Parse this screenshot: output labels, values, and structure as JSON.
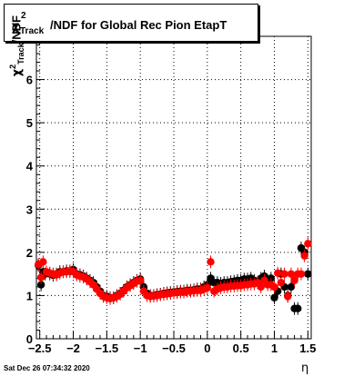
{
  "chart_data": {
    "type": "scatter",
    "title": "/NDF for Global Rec Pion EtapT",
    "title_symbol": "χ",
    "title_superscript": "2",
    "title_subscript": "Track",
    "ylabel_symbol": "χ",
    "ylabel_superscript": "2",
    "ylabel_subscript": "Track",
    "ylabel_rest": "/NDF",
    "xlabel": "η",
    "xlim": [
      -2.55,
      1.55
    ],
    "ylim": [
      0,
      7
    ],
    "grid": true,
    "legend": "none",
    "xticks": [
      -2.5,
      -2,
      -1.5,
      -1,
      -0.5,
      0,
      0.5,
      1,
      1.5
    ],
    "xtick_labels": [
      "−2.5",
      "−2",
      "−1.5",
      "−1",
      "−0.5",
      "0",
      "0.5",
      "1",
      "1.5"
    ],
    "yticks": [
      0,
      1,
      2,
      3,
      4,
      5,
      6
    ],
    "ytick_labels": [
      "0",
      "1",
      "2",
      "3",
      "4",
      "5",
      "6"
    ],
    "series": [
      {
        "color": "#000000",
        "points": [
          [
            -2.52,
            1.7
          ],
          [
            -2.48,
            1.25
          ],
          [
            -2.45,
            1.55
          ],
          [
            -2.42,
            1.5
          ],
          [
            -2.35,
            1.5
          ],
          [
            -2.3,
            1.47
          ],
          [
            -2.25,
            1.5
          ],
          [
            -2.2,
            1.55
          ],
          [
            -2.15,
            1.55
          ],
          [
            -2.1,
            1.57
          ],
          [
            -2.05,
            1.56
          ],
          [
            -2.0,
            1.6
          ],
          [
            -1.95,
            1.5
          ],
          [
            -1.9,
            1.48
          ],
          [
            -1.85,
            1.45
          ],
          [
            -1.8,
            1.4
          ],
          [
            -1.75,
            1.35
          ],
          [
            -1.7,
            1.3
          ],
          [
            -1.65,
            1.2
          ],
          [
            -1.6,
            1.1
          ],
          [
            -1.55,
            1.0
          ],
          [
            -1.5,
            0.98
          ],
          [
            -1.45,
            0.95
          ],
          [
            -1.4,
            0.95
          ],
          [
            -1.35,
            1.0
          ],
          [
            -1.3,
            1.05
          ],
          [
            -1.25,
            1.12
          ],
          [
            -1.2,
            1.2
          ],
          [
            -1.15,
            1.25
          ],
          [
            -1.1,
            1.3
          ],
          [
            -1.05,
            1.35
          ],
          [
            -1.0,
            1.38
          ],
          [
            -0.95,
            1.2
          ],
          [
            -0.9,
            1.05
          ],
          [
            -0.85,
            1.0
          ],
          [
            -0.8,
            1.0
          ],
          [
            -0.75,
            1.02
          ],
          [
            -0.7,
            1.03
          ],
          [
            -0.65,
            1.05
          ],
          [
            -0.6,
            1.06
          ],
          [
            -0.55,
            1.07
          ],
          [
            -0.5,
            1.08
          ],
          [
            -0.45,
            1.09
          ],
          [
            -0.4,
            1.1
          ],
          [
            -0.35,
            1.1
          ],
          [
            -0.3,
            1.12
          ],
          [
            -0.25,
            1.12
          ],
          [
            -0.2,
            1.13
          ],
          [
            -0.15,
            1.15
          ],
          [
            -0.1,
            1.15
          ],
          [
            -0.05,
            1.2
          ],
          [
            0.0,
            1.25
          ],
          [
            0.05,
            1.4
          ],
          [
            0.1,
            1.3
          ],
          [
            0.15,
            1.3
          ],
          [
            0.2,
            1.28
          ],
          [
            0.25,
            1.3
          ],
          [
            0.3,
            1.3
          ],
          [
            0.35,
            1.32
          ],
          [
            0.4,
            1.33
          ],
          [
            0.45,
            1.35
          ],
          [
            0.5,
            1.35
          ],
          [
            0.55,
            1.38
          ],
          [
            0.6,
            1.38
          ],
          [
            0.65,
            1.4
          ],
          [
            0.7,
            1.35
          ],
          [
            0.75,
            1.3
          ],
          [
            0.8,
            1.4
          ],
          [
            0.85,
            1.45
          ],
          [
            0.9,
            1.35
          ],
          [
            0.95,
            1.4
          ],
          [
            1.0,
            0.95
          ],
          [
            1.05,
            1.1
          ],
          [
            1.1,
            1.5
          ],
          [
            1.15,
            1.2
          ],
          [
            1.2,
            1.0
          ],
          [
            1.25,
            1.2
          ],
          [
            1.3,
            0.7
          ],
          [
            1.35,
            0.7
          ],
          [
            1.4,
            2.1
          ],
          [
            1.45,
            2.0
          ],
          [
            1.5,
            1.5
          ]
        ]
      },
      {
        "color": "#ff0000",
        "points": [
          [
            -2.52,
            1.72
          ],
          [
            -2.48,
            1.42
          ],
          [
            -2.45,
            1.78
          ],
          [
            -2.4,
            1.55
          ],
          [
            -2.35,
            1.52
          ],
          [
            -2.3,
            1.5
          ],
          [
            -2.25,
            1.48
          ],
          [
            -2.2,
            1.52
          ],
          [
            -2.15,
            1.55
          ],
          [
            -2.1,
            1.55
          ],
          [
            -2.05,
            1.57
          ],
          [
            -2.0,
            1.55
          ],
          [
            -1.95,
            1.48
          ],
          [
            -1.9,
            1.45
          ],
          [
            -1.85,
            1.43
          ],
          [
            -1.8,
            1.38
          ],
          [
            -1.75,
            1.32
          ],
          [
            -1.7,
            1.25
          ],
          [
            -1.65,
            1.15
          ],
          [
            -1.6,
            1.05
          ],
          [
            -1.55,
            0.98
          ],
          [
            -1.5,
            0.95
          ],
          [
            -1.45,
            0.93
          ],
          [
            -1.4,
            0.95
          ],
          [
            -1.35,
            0.98
          ],
          [
            -1.3,
            1.03
          ],
          [
            -1.25,
            1.1
          ],
          [
            -1.2,
            1.18
          ],
          [
            -1.15,
            1.23
          ],
          [
            -1.1,
            1.28
          ],
          [
            -1.05,
            1.33
          ],
          [
            -1.0,
            1.35
          ],
          [
            -0.95,
            1.1
          ],
          [
            -0.9,
            1.0
          ],
          [
            -0.85,
            0.98
          ],
          [
            -0.8,
            0.99
          ],
          [
            -0.75,
            1.0
          ],
          [
            -0.7,
            1.02
          ],
          [
            -0.65,
            1.03
          ],
          [
            -0.6,
            1.04
          ],
          [
            -0.55,
            1.05
          ],
          [
            -0.5,
            1.06
          ],
          [
            -0.45,
            1.07
          ],
          [
            -0.4,
            1.08
          ],
          [
            -0.35,
            1.08
          ],
          [
            -0.3,
            1.1
          ],
          [
            -0.25,
            1.1
          ],
          [
            -0.2,
            1.11
          ],
          [
            -0.15,
            1.12
          ],
          [
            -0.1,
            1.12
          ],
          [
            -0.05,
            1.15
          ],
          [
            0.0,
            1.18
          ],
          [
            0.05,
            1.78
          ],
          [
            0.1,
            1.1
          ],
          [
            0.15,
            1.15
          ],
          [
            0.2,
            1.18
          ],
          [
            0.25,
            1.2
          ],
          [
            0.3,
            1.2
          ],
          [
            0.35,
            1.22
          ],
          [
            0.4,
            1.22
          ],
          [
            0.45,
            1.23
          ],
          [
            0.5,
            1.23
          ],
          [
            0.55,
            1.25
          ],
          [
            0.6,
            1.25
          ],
          [
            0.65,
            1.27
          ],
          [
            0.7,
            1.27
          ],
          [
            0.75,
            1.3
          ],
          [
            0.8,
            1.2
          ],
          [
            0.85,
            1.35
          ],
          [
            0.9,
            1.25
          ],
          [
            0.95,
            1.25
          ],
          [
            1.0,
            1.2
          ],
          [
            1.05,
            1.52
          ],
          [
            1.1,
            1.3
          ],
          [
            1.15,
            1.5
          ],
          [
            1.2,
            0.98
          ],
          [
            1.25,
            1.5
          ],
          [
            1.3,
            1.35
          ],
          [
            1.35,
            1.5
          ],
          [
            1.4,
            1.5
          ],
          [
            1.45,
            1.92
          ],
          [
            1.5,
            2.2
          ]
        ]
      }
    ]
  },
  "timestamp": "Sat Dec 26 07:34:32 2020"
}
